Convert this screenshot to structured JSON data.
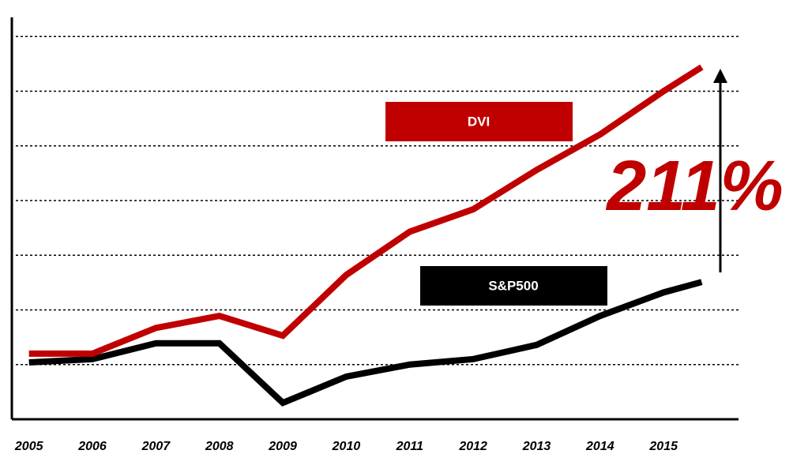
{
  "chart_data": {
    "type": "line",
    "x": [
      2005,
      2006,
      2007,
      2008,
      2009,
      2010,
      2011,
      2012,
      2013,
      2014,
      2015,
      2015.6
    ],
    "xticks": [
      2005,
      2006,
      2007,
      2008,
      2009,
      2010,
      2011,
      2012,
      2013,
      2014,
      2015
    ],
    "xlim": [
      2004.73,
      2016.18
    ],
    "ylim": [
      0,
      7.35
    ],
    "yticks": [
      1,
      2,
      3,
      4,
      5,
      6,
      7
    ],
    "grid": true,
    "series": [
      {
        "name": "DVI",
        "color": "#c00000",
        "values": [
          1.2,
          1.2,
          1.67,
          1.89,
          1.53,
          2.64,
          3.43,
          3.84,
          4.56,
          5.21,
          6.0,
          6.44
        ]
      },
      {
        "name": "S&P500",
        "color": "#000000",
        "values": [
          1.04,
          1.1,
          1.39,
          1.39,
          0.3,
          0.78,
          1.0,
          1.1,
          1.36,
          1.89,
          2.32,
          2.51
        ]
      }
    ],
    "annotation": "211%"
  }
}
